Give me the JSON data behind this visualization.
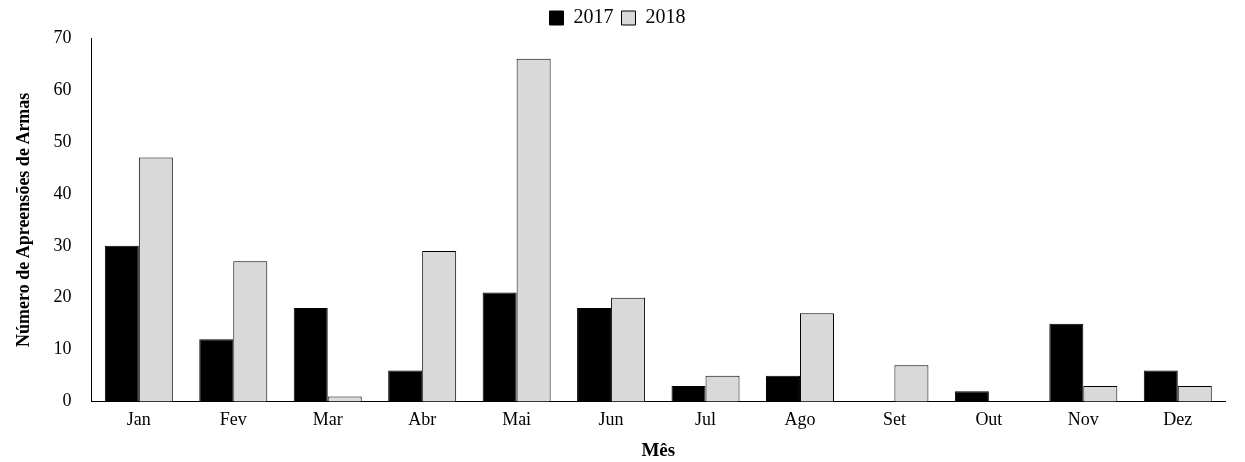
{
  "chart_data": {
    "type": "bar",
    "xlabel": "Mês",
    "ylabel": "Número de Apreensões de Armas",
    "categories": [
      "Jan",
      "Fev",
      "Mar",
      "Abr",
      "Mai",
      "Jun",
      "Jul",
      "Ago",
      "Set",
      "Out",
      "Nov",
      "Dez"
    ],
    "series": [
      {
        "name": "2017",
        "color": "#000000",
        "values": [
          30,
          12,
          18,
          6,
          21,
          18,
          3,
          5,
          0,
          2,
          15,
          6
        ]
      },
      {
        "name": "2018",
        "color": "#d9d9d9",
        "values": [
          47,
          27,
          1,
          29,
          66,
          20,
          5,
          17,
          7,
          0,
          3,
          3
        ]
      }
    ],
    "ylim": [
      0,
      70
    ],
    "yticks": [
      0,
      10,
      20,
      30,
      40,
      50,
      60,
      70
    ],
    "grid": false,
    "legend": "top"
  }
}
